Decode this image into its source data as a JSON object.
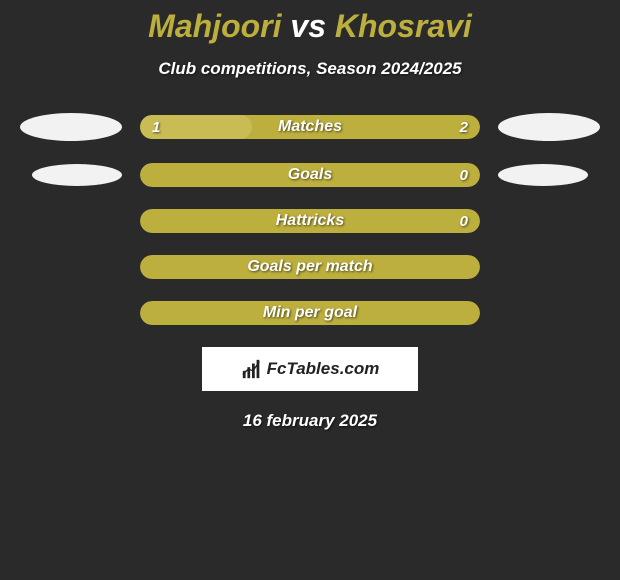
{
  "title": {
    "player1": "Mahjoori",
    "vs": "vs",
    "player2": "Khosravi"
  },
  "subtitle": "Club competitions, Season 2024/2025",
  "colors": {
    "bar_olive": "#bdaf3d",
    "bar_olive_light": "#c9bc55",
    "white": "#f2f2f2",
    "bg": "#2a2a2a"
  },
  "stats": [
    {
      "label": "Matches",
      "left_val": "1",
      "right_val": "2",
      "left_pct": 33,
      "bg_color": "#bdaf3d",
      "left_fill_color": "#c9bc55",
      "show_ellipse": "large"
    },
    {
      "label": "Goals",
      "left_val": "",
      "right_val": "0",
      "left_pct": 0,
      "bg_color": "#bdaf3d",
      "left_fill_color": "#c9bc55",
      "show_ellipse": "small"
    },
    {
      "label": "Hattricks",
      "left_val": "",
      "right_val": "0",
      "left_pct": 0,
      "bg_color": "#bdaf3d",
      "left_fill_color": "#c9bc55",
      "show_ellipse": "none"
    },
    {
      "label": "Goals per match",
      "left_val": "",
      "right_val": "",
      "left_pct": 0,
      "bg_color": "#bdaf3d",
      "left_fill_color": "#c9bc55",
      "show_ellipse": "none"
    },
    {
      "label": "Min per goal",
      "left_val": "",
      "right_val": "",
      "left_pct": 0,
      "bg_color": "#bdaf3d",
      "left_fill_color": "#c9bc55",
      "show_ellipse": "none"
    }
  ],
  "logo_text": "FcTables.com",
  "date": "16 february 2025"
}
